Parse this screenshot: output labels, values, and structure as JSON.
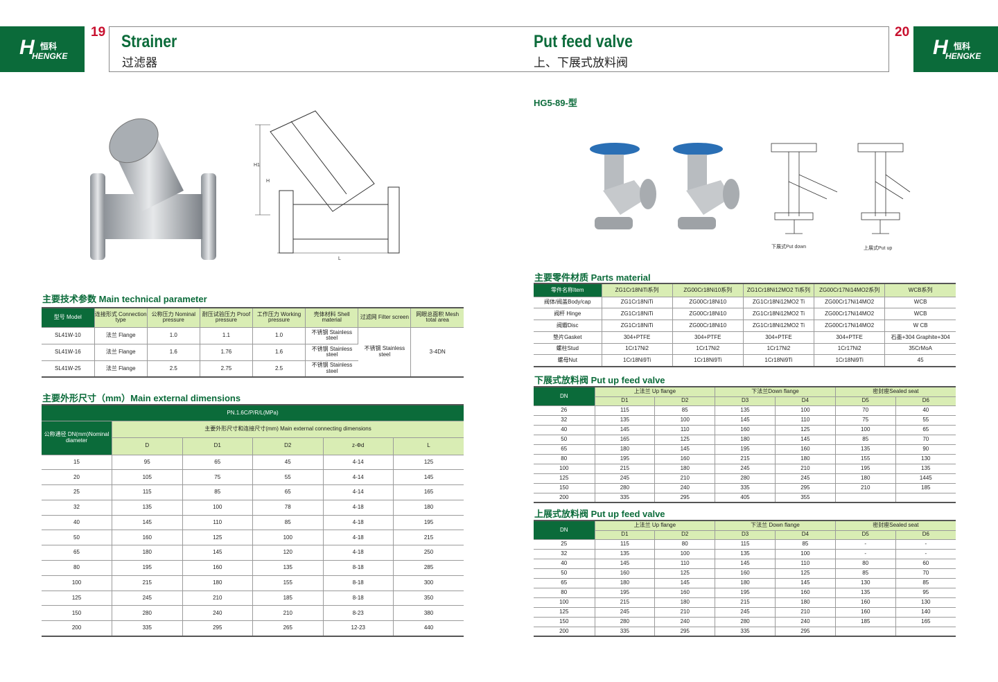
{
  "brand": {
    "cn": "恒科",
    "en": "HENGKE",
    "mark": "H"
  },
  "left": {
    "page": "19",
    "title": "Strainer",
    "subtitle": "过滤器",
    "sec1": "主要技术参数 Main technical parameter",
    "tech": {
      "headers": [
        "型号 Model",
        "连接形式 Connection type",
        "公称压力 Nominal pressure",
        "耐压试验压力 Proof pressure",
        "工作压力 Working pressure",
        "壳体材料 Shell material",
        "过滤网 Filter screen",
        "网眼总面积 Mesh total area"
      ],
      "rows": [
        [
          "SL41W-10",
          "法兰 Flange",
          "1.0",
          "1.1",
          "1.0",
          "不锈钢 Stainless steel"
        ],
        [
          "SL41W-16",
          "法兰 Flange",
          "1.6",
          "1.76",
          "1.6",
          "不锈钢 Stainless steel"
        ],
        [
          "SL41W-25",
          "法兰 Flange",
          "2.5",
          "2.75",
          "2.5",
          "不锈钢 Stainless steel"
        ]
      ],
      "filter": "不锈钢 Stainless steel",
      "mesh": "3-4DN"
    },
    "sec2": "主要外形尺寸（mm）Main external dimensions",
    "dims": {
      "pn": "PN.1.6C/P/R/L(MPa)",
      "dn_header": "公称通径 DN(mm)Nominal diameter",
      "group": "主要外形尺寸和连接尺寸(mm) Main external connecting dimensions",
      "cols": [
        "D",
        "D1",
        "D2",
        "z-Φd",
        "L"
      ],
      "rows": [
        [
          "15",
          "95",
          "65",
          "45",
          "4-14",
          "125"
        ],
        [
          "20",
          "105",
          "75",
          "55",
          "4-14",
          "145"
        ],
        [
          "25",
          "115",
          "85",
          "65",
          "4-14",
          "165"
        ],
        [
          "32",
          "135",
          "100",
          "78",
          "4-18",
          "180"
        ],
        [
          "40",
          "145",
          "110",
          "85",
          "4-18",
          "195"
        ],
        [
          "50",
          "160",
          "125",
          "100",
          "4-18",
          "215"
        ],
        [
          "65",
          "180",
          "145",
          "120",
          "4-18",
          "250"
        ],
        [
          "80",
          "195",
          "160",
          "135",
          "8-18",
          "285"
        ],
        [
          "100",
          "215",
          "180",
          "155",
          "8-18",
          "300"
        ],
        [
          "125",
          "245",
          "210",
          "185",
          "8-18",
          "350"
        ],
        [
          "150",
          "280",
          "240",
          "210",
          "8-23",
          "380"
        ],
        [
          "200",
          "335",
          "295",
          "265",
          "12-23",
          "440"
        ]
      ]
    },
    "drawing_labels": {
      "h1": "H1",
      "h": "H",
      "l": "L"
    }
  },
  "right": {
    "page": "20",
    "title": "Put feed valve",
    "subtitle": "上、下展式放料阀",
    "model": "HG5-89-型",
    "captions": [
      "下展式Put down",
      "上展式Put up"
    ],
    "sec1": "主要零件材质 Parts material",
    "parts": {
      "headers": [
        "零件名称Item",
        "ZG1Cr18NiTi系列",
        "ZG00Cr18Ni10系列",
        "ZG1Cr18Ni12MO2 Ti系列",
        "ZG00Cr17Ni14MO2系列",
        "WCB系列"
      ],
      "rows": [
        [
          "阀体/阀盖Body/cap",
          "ZG1Cr18NiTi",
          "ZG00Cr18Ni10",
          "ZG1Cr18Ni12MO2 Ti",
          "ZG00Cr17Ni14MO2",
          "WCB"
        ],
        [
          "阀杆 Hinge",
          "ZG1Cr18NiTi",
          "ZG00Cr18Ni10",
          "ZG1Cr18Ni12MO2 Ti",
          "ZG00Cr17Ni14MO2",
          "WCB"
        ],
        [
          "阀瓣Disc",
          "ZG1Cr18NiTi",
          "ZG00Cr18Ni10",
          "ZG1Cr18Ni12MO2 Ti",
          "ZG00Cr17Ni14MO2",
          "W CB"
        ],
        [
          "垫片Gasket",
          "304+PTFE",
          "304+PTFE",
          "304+PTFE",
          "304+PTFE",
          "石墨+304 Graphite+304"
        ],
        [
          "螺柱Stud",
          "1Cr17Ni2",
          "1Cr17Ni2",
          "1Cr17Ni2",
          "1Cr17Ni2",
          "35CrMoA"
        ],
        [
          "螺母Nut",
          "1Cr18Ni9Ti",
          "1Cr18Ni9Ti",
          "1Cr18Ni9Ti",
          "1Cr18Ni9Ti",
          "45"
        ]
      ]
    },
    "sec2": "下展式放料阀 Put up feed valve",
    "down": {
      "groups": [
        "DN",
        "上法兰 Up flange",
        "下法兰Down flange",
        "密封座Sealed seat"
      ],
      "cols": [
        "D1",
        "D2",
        "D3",
        "D4",
        "D5",
        "D6"
      ],
      "rows": [
        [
          "26",
          "115",
          "85",
          "135",
          "100",
          "70",
          "40"
        ],
        [
          "32",
          "135",
          "100",
          "145",
          "110",
          "75",
          "55"
        ],
        [
          "40",
          "145",
          "110",
          "160",
          "125",
          "100",
          "65"
        ],
        [
          "50",
          "165",
          "125",
          "180",
          "145",
          "85",
          "70"
        ],
        [
          "65",
          "180",
          "145",
          "195",
          "160",
          "135",
          "90"
        ],
        [
          "80",
          "195",
          "160",
          "215",
          "180",
          "155",
          "130"
        ],
        [
          "100",
          "215",
          "180",
          "245",
          "210",
          "195",
          "135"
        ],
        [
          "125",
          "245",
          "210",
          "280",
          "245",
          "180",
          "1445"
        ],
        [
          "150",
          "280",
          "240",
          "335",
          "295",
          "210",
          "185"
        ],
        [
          "200",
          "335",
          "295",
          "405",
          "355",
          "",
          ""
        ]
      ]
    },
    "sec3": "上展式放料阀 Put up feed valve",
    "up": {
      "groups": [
        "DN",
        "上法兰 Up flange",
        "下法兰 Down flange",
        "密封座Sealed seat"
      ],
      "cols": [
        "D1",
        "D2",
        "D3",
        "D4",
        "D5",
        "D6"
      ],
      "rows": [
        [
          "25",
          "115",
          "80",
          "115",
          "85",
          "-",
          "-"
        ],
        [
          "32",
          "135",
          "100",
          "135",
          "100",
          "-",
          "-"
        ],
        [
          "40",
          "145",
          "110",
          "145",
          "110",
          "80",
          "60"
        ],
        [
          "50",
          "160",
          "125",
          "160",
          "125",
          "85",
          "70"
        ],
        [
          "65",
          "180",
          "145",
          "180",
          "145",
          "130",
          "85"
        ],
        [
          "80",
          "195",
          "160",
          "195",
          "160",
          "135",
          "95"
        ],
        [
          "100",
          "215",
          "180",
          "215",
          "180",
          "160",
          "130"
        ],
        [
          "125",
          "245",
          "210",
          "245",
          "210",
          "160",
          "140"
        ],
        [
          "150",
          "280",
          "240",
          "280",
          "240",
          "185",
          "165"
        ],
        [
          "200",
          "335",
          "295",
          "335",
          "295",
          "",
          ""
        ]
      ]
    }
  },
  "colors": {
    "brand_green": "#0b6b3a",
    "header_light": "#d9edb4",
    "page_number": "#c8102e"
  }
}
